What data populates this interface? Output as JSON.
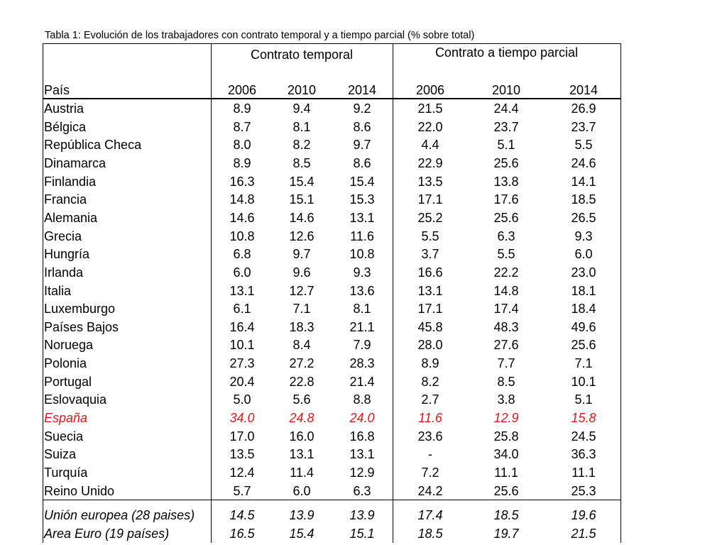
{
  "caption": "Tabla 1: Evolución de los trabajadores con contrato temporal y a tiempo parcial (% sobre total)",
  "chart_data": {
    "type": "table",
    "title": "Tabla 1: Evolución de los trabajadores con contrato temporal y a tiempo parcial (% sobre total)",
    "column_groups": [
      "Contrato temporal",
      "Contrato a tiempo parcial"
    ],
    "row_header_label": "País",
    "columns": [
      "2006",
      "2010",
      "2014",
      "2006",
      "2010",
      "2014"
    ],
    "rows": [
      {
        "country": "Austria",
        "values": [
          "8.9",
          "9.4",
          "9.2",
          "21.5",
          "24.4",
          "26.9"
        ]
      },
      {
        "country": "Bélgica",
        "values": [
          "8.7",
          "8.1",
          "8.6",
          "22.0",
          "23.7",
          "23.7"
        ]
      },
      {
        "country": "República Checa",
        "values": [
          "8.0",
          "8.2",
          "9.7",
          "4.4",
          "5.1",
          "5.5"
        ]
      },
      {
        "country": "Dinamarca",
        "values": [
          "8.9",
          "8.5",
          "8.6",
          "22.9",
          "25.6",
          "24.6"
        ]
      },
      {
        "country": "Finlandia",
        "values": [
          "16.3",
          "15.4",
          "15.4",
          "13.5",
          "13.8",
          "14.1"
        ]
      },
      {
        "country": "Francia",
        "values": [
          "14.8",
          "15.1",
          "15.3",
          "17.1",
          "17.6",
          "18.5"
        ]
      },
      {
        "country": "Alemania",
        "values": [
          "14.6",
          "14.6",
          "13.1",
          "25.2",
          "25.6",
          "26.5"
        ]
      },
      {
        "country": "Grecia",
        "values": [
          "10.8",
          "12.6",
          "11.6",
          "5.5",
          "6.3",
          "9.3"
        ]
      },
      {
        "country": "Hungría",
        "values": [
          "6.8",
          "9.7",
          "10.8",
          "3.7",
          "5.5",
          "6.0"
        ]
      },
      {
        "country": "Irlanda",
        "values": [
          "6.0",
          "9.6",
          "9.3",
          "16.6",
          "22.2",
          "23.0"
        ]
      },
      {
        "country": "Italia",
        "values": [
          "13.1",
          "12.7",
          "13.6",
          "13.1",
          "14.8",
          "18.1"
        ]
      },
      {
        "country": "Luxemburgo",
        "values": [
          "6.1",
          "7.1",
          "8.1",
          "17.1",
          "17.4",
          "18.4"
        ]
      },
      {
        "country": "Países Bajos",
        "values": [
          "16.4",
          "18.3",
          "21.1",
          "45.8",
          "48.3",
          "49.6"
        ]
      },
      {
        "country": "Noruega",
        "values": [
          "10.1",
          "8.4",
          "7.9",
          "28.0",
          "27.6",
          "25.6"
        ]
      },
      {
        "country": "Polonia",
        "values": [
          "27.3",
          "27.2",
          "28.3",
          "8.9",
          "7.7",
          "7.1"
        ]
      },
      {
        "country": "Portugal",
        "values": [
          "20.4",
          "22.8",
          "21.4",
          "8.2",
          "8.5",
          "10.1"
        ]
      },
      {
        "country": "Eslovaquia",
        "values": [
          "5.0",
          "5.6",
          "8.8",
          "2.7",
          "3.8",
          "5.1"
        ]
      },
      {
        "country": "España",
        "values": [
          "34.0",
          "24.8",
          "24.0",
          "11.6",
          "12.9",
          "15.8"
        ],
        "highlight": true
      },
      {
        "country": "Suecia",
        "values": [
          "17.0",
          "16.0",
          "16.8",
          "23.6",
          "25.8",
          "24.5"
        ]
      },
      {
        "country": "Suiza",
        "values": [
          "13.5",
          "13.1",
          "13.1",
          "-",
          "34.0",
          "36.3"
        ]
      },
      {
        "country": "Turquía",
        "values": [
          "12.4",
          "11.4",
          "12.9",
          "7.2",
          "11.1",
          "11.1"
        ]
      },
      {
        "country": "Reino Unido",
        "values": [
          "5.7",
          "6.0",
          "6.3",
          "24.2",
          "25.6",
          "25.3"
        ]
      }
    ],
    "summary_rows": [
      {
        "country": "Unión europea (28 paises)",
        "values": [
          "14.5",
          "13.9",
          "13.9",
          "17.4",
          "18.5",
          "19.6"
        ]
      },
      {
        "country": "Area Euro (19 países)",
        "values": [
          "16.5",
          "15.4",
          "15.1",
          "18.5",
          "19.7",
          "21.5"
        ]
      }
    ],
    "highlight_color": "#e8141a"
  }
}
